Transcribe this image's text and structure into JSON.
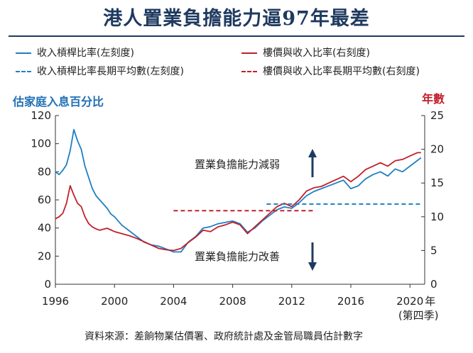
{
  "title": "港人置業負擔能力逼97年最差",
  "legend": [
    {
      "label": "收入槓桿比率(左刻度)",
      "color": "#1f7fc4",
      "dash": "solid"
    },
    {
      "label": "樓價與收入比率(右刻度)",
      "color": "#c0202c",
      "dash": "solid"
    },
    {
      "label": "收入槓桿比率長期平均數(左刻度)",
      "color": "#1f7fc4",
      "dash": "dashed"
    },
    {
      "label": "樓價與收入比率長期平均數(右刻度)",
      "color": "#c0202c",
      "dash": "dashed"
    }
  ],
  "annotations": {
    "weaker": "置業負擔能力減弱",
    "improve": "置業負擔能力改善"
  },
  "source": "資料來源：差餉物業估價署、政府統計處及金管局職員估計數字",
  "chart_data": {
    "type": "line",
    "title": "港人置業負擔能力逼97年最差",
    "ylabel_left": "估家庭入息百分比",
    "ylabel_right": "年數",
    "x_ticks": [
      "1996",
      "2000",
      "2004",
      "2008",
      "2012",
      "2016",
      "2020"
    ],
    "x_tick_last_suffix": "年",
    "x_sublabel": "(第四季)",
    "xlim": [
      1996,
      2021
    ],
    "ylim_left": [
      0,
      120
    ],
    "ylim_right": [
      0,
      25
    ],
    "y_ticks_left": [
      "0",
      "20",
      "40",
      "60",
      "80",
      "100",
      "120"
    ],
    "y_ticks_right": [
      "0",
      "5",
      "10",
      "15",
      "20",
      "25"
    ],
    "grid": false,
    "series": [
      {
        "name": "收入槓桿比率(左刻度)",
        "axis": "left",
        "color": "#1f7fc4",
        "x": [
          1996.0,
          1996.25,
          1996.5,
          1996.75,
          1997.0,
          1997.25,
          1997.5,
          1997.75,
          1998.0,
          1998.25,
          1998.5,
          1998.75,
          1999.0,
          1999.25,
          1999.5,
          1999.75,
          2000.0,
          2000.5,
          2001.0,
          2001.5,
          2002.0,
          2002.5,
          2003.0,
          2003.5,
          2004.0,
          2004.5,
          2005.0,
          2005.5,
          2006.0,
          2006.5,
          2007.0,
          2007.5,
          2008.0,
          2008.5,
          2009.0,
          2009.5,
          2010.0,
          2010.5,
          2011.0,
          2011.5,
          2012.0,
          2012.5,
          2013.0,
          2013.5,
          2014.0,
          2014.5,
          2015.0,
          2015.5,
          2016.0,
          2016.5,
          2017.0,
          2017.5,
          2018.0,
          2018.5,
          2019.0,
          2019.5,
          2020.0,
          2020.5,
          2020.75
        ],
        "values": [
          80,
          78,
          81,
          85,
          95,
          110,
          102,
          96,
          84,
          76,
          68,
          63,
          60,
          57,
          54,
          50,
          48,
          42,
          38,
          34,
          30,
          28,
          27,
          25,
          23,
          23,
          30,
          34,
          40,
          41,
          43,
          44,
          45,
          43,
          37,
          40,
          45,
          49,
          53,
          55,
          54,
          58,
          63,
          66,
          68,
          70,
          72,
          74,
          68,
          70,
          75,
          78,
          80,
          77,
          82,
          80,
          84,
          88,
          90
        ]
      },
      {
        "name": "樓價與收入比率(右刻度)",
        "axis": "right",
        "color": "#c0202c",
        "x": [
          1996.0,
          1996.25,
          1996.5,
          1996.75,
          1997.0,
          1997.25,
          1997.5,
          1997.75,
          1998.0,
          1998.25,
          1998.5,
          1998.75,
          1999.0,
          1999.5,
          2000.0,
          2000.5,
          2001.0,
          2001.5,
          2002.0,
          2002.5,
          2003.0,
          2003.5,
          2004.0,
          2004.5,
          2005.0,
          2005.5,
          2006.0,
          2006.5,
          2007.0,
          2007.5,
          2008.0,
          2008.5,
          2009.0,
          2009.5,
          2010.0,
          2010.5,
          2011.0,
          2011.5,
          2012.0,
          2012.5,
          2013.0,
          2013.5,
          2014.0,
          2014.5,
          2015.0,
          2015.5,
          2016.0,
          2016.5,
          2017.0,
          2017.5,
          2018.0,
          2018.5,
          2019.0,
          2019.5,
          2020.0,
          2020.5,
          2020.75
        ],
        "values": [
          9.7,
          10.0,
          10.5,
          12.0,
          14.6,
          13.2,
          12.0,
          11.5,
          10.0,
          9.0,
          8.5,
          8.2,
          8.0,
          8.3,
          7.8,
          7.5,
          7.2,
          6.8,
          6.3,
          5.8,
          5.3,
          5.1,
          5.0,
          5.3,
          6.2,
          7.0,
          8.0,
          7.8,
          8.5,
          8.8,
          9.2,
          8.8,
          7.5,
          8.5,
          9.5,
          10.5,
          11.5,
          12.0,
          11.5,
          12.5,
          13.8,
          14.3,
          14.5,
          15.0,
          15.5,
          16.0,
          15.2,
          16.0,
          17.0,
          17.5,
          18.0,
          17.5,
          18.3,
          18.5,
          19.0,
          19.5,
          19.5
        ]
      },
      {
        "name": "收入槓桿比率長期平均數(左刻度)",
        "axis": "left",
        "color": "#1f7fc4",
        "dashed": true,
        "x": [
          2010.3,
          2020.75
        ],
        "values": [
          57,
          57
        ]
      },
      {
        "name": "樓價與收入比率長期平均數(右刻度)",
        "axis": "right",
        "color": "#c0202c",
        "dashed": true,
        "x": [
          2004.0,
          2013.5
        ],
        "values": [
          10.9,
          10.9
        ]
      }
    ]
  }
}
